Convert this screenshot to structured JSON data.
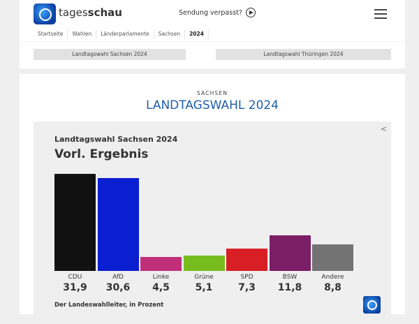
{
  "header": {
    "brand_light": "tages",
    "brand_bold": "schau",
    "missed": "Sendung verpasst?"
  },
  "breadcrumb": [
    "Startseite",
    "Wahlen",
    "Länderparlamente",
    "Sachsen",
    "2024"
  ],
  "tabs": [
    "Landtagswahl Sachsen 2024",
    "Landtagswahl Thüringen 2024"
  ],
  "main": {
    "kicker": "SACHSEN",
    "headline": "LANDTAGSWAHL 2024"
  },
  "chart_data": {
    "type": "bar",
    "title": "Vorl. Ergebnis",
    "subtitle": "Landtagswahl Sachsen 2024",
    "source": "Der Landeswahlleiter, in Prozent",
    "categories": [
      "CDU",
      "AfD",
      "Linke",
      "Grüne",
      "SPD",
      "BSW",
      "Andere"
    ],
    "values": [
      31.9,
      30.6,
      4.5,
      5.1,
      7.3,
      11.8,
      8.8
    ],
    "value_labels": [
      "31,9",
      "30,6",
      "4,5",
      "5,1",
      "7,3",
      "11,8",
      "8,8"
    ],
    "colors": [
      "#111111",
      "#0a1fd0",
      "#c0307a",
      "#78bd1e",
      "#d91f26",
      "#7b1e66",
      "#737373"
    ],
    "ylim": [
      0,
      31.9
    ]
  }
}
